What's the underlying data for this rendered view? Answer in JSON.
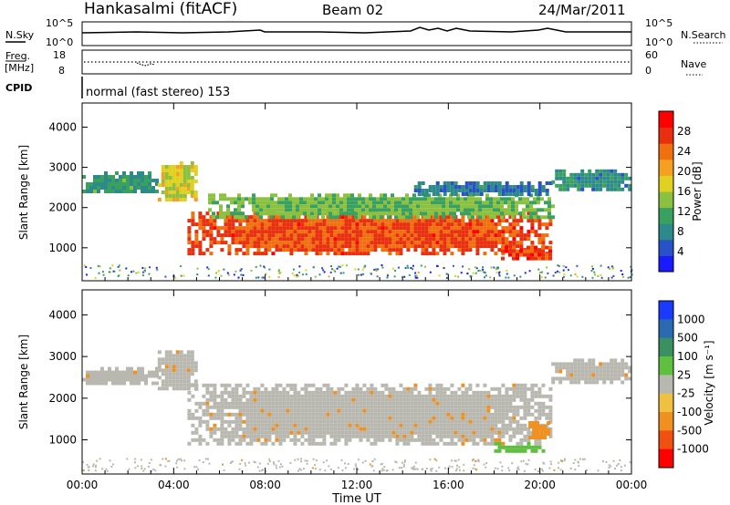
{
  "header": {
    "title": "Hankasalmi (fitACF)",
    "beam": "Beam 02",
    "date": "24/Mar/2011"
  },
  "status_panels": {
    "nsky": {
      "label": "N.Sky",
      "ticks": [
        "10^5",
        "10^0"
      ]
    },
    "nsearch": {
      "label": "N.Search",
      "ticks": [
        "10^5",
        "10^0"
      ]
    },
    "freq": {
      "label_line1": "Freq.",
      "label_line2": "[MHz]",
      "ticks": [
        "18",
        "8"
      ]
    },
    "nave": {
      "label": "Nave",
      "ticks": [
        "60",
        "0"
      ]
    },
    "cpid": {
      "label": "CPID",
      "text": "normal (fast stereo) 153"
    }
  },
  "chart_data": [
    {
      "type": "heatmap",
      "name": "power",
      "xlabel": "Time UT",
      "ylabel": "Slant Range [km]",
      "xlim": [
        0,
        24
      ],
      "ylim": [
        180,
        4600
      ],
      "yticks": [
        "1000",
        "2000",
        "3000",
        "4000"
      ],
      "colorbar": {
        "label": "Power [dB]",
        "range": [
          0,
          32
        ],
        "ticks": [
          "4",
          "8",
          "12",
          "16",
          "20",
          "24",
          "28"
        ],
        "colors": [
          "#1a1aff",
          "#2a52c8",
          "#2d8a8a",
          "#3aa060",
          "#8cc040",
          "#e0d020",
          "#f5a020",
          "#f07010",
          "#e83010",
          "#ff0000"
        ]
      },
      "regions": [
        {
          "t": [
            0,
            3.3
          ],
          "range": [
            2380,
            2900
          ],
          "value": 10
        },
        {
          "t": [
            3.3,
            5.0
          ],
          "range": [
            2200,
            3150
          ],
          "value": 17
        },
        {
          "t": [
            4.6,
            20.5
          ],
          "range": [
            900,
            1900
          ],
          "value": 26
        },
        {
          "t": [
            5.5,
            20.5
          ],
          "range": [
            1800,
            2350
          ],
          "value": 13
        },
        {
          "t": [
            14.5,
            20.5
          ],
          "range": [
            2350,
            2650
          ],
          "value": 7
        },
        {
          "t": [
            18.3,
            20.4
          ],
          "range": [
            750,
            1050
          ],
          "value": 27
        },
        {
          "t": [
            20.5,
            24
          ],
          "range": [
            2450,
            2950
          ],
          "value": 9
        }
      ]
    },
    {
      "type": "heatmap",
      "name": "velocity",
      "xlabel": "Time UT",
      "ylabel": "Slant Range [km]",
      "xlim": [
        0,
        24
      ],
      "ylim": [
        180,
        4600
      ],
      "yticks": [
        "1000",
        "2000",
        "3000",
        "4000"
      ],
      "xticks": [
        "00:00",
        "04:00",
        "08:00",
        "12:00",
        "16:00",
        "20:00",
        "00:00"
      ],
      "colorbar": {
        "label": "Velocity [m s⁻¹]",
        "ticks": [
          "1000",
          "500",
          "100",
          "25",
          "-25",
          "-100",
          "-500",
          "-1000"
        ],
        "colors": [
          "#1a3aff",
          "#2a6ab0",
          "#3a9060",
          "#5fc040",
          "#b8b8b0",
          "#f0c040",
          "#f09020",
          "#f05010",
          "#ff0000"
        ]
      },
      "regions": [
        {
          "t": [
            0,
            3.3
          ],
          "range": [
            2350,
            2750
          ],
          "value": 0
        },
        {
          "t": [
            3.3,
            5.0
          ],
          "range": [
            2200,
            3150
          ],
          "value": 0
        },
        {
          "t": [
            4.6,
            20.5
          ],
          "range": [
            900,
            2350
          ],
          "value": 0
        },
        {
          "t": [
            18.0,
            20.1
          ],
          "range": [
            750,
            950
          ],
          "value": 80
        },
        {
          "t": [
            19.5,
            20.4
          ],
          "range": [
            1050,
            1450
          ],
          "value": -300
        },
        {
          "t": [
            20.5,
            24
          ],
          "range": [
            2400,
            2950
          ],
          "value": 0
        }
      ]
    }
  ]
}
